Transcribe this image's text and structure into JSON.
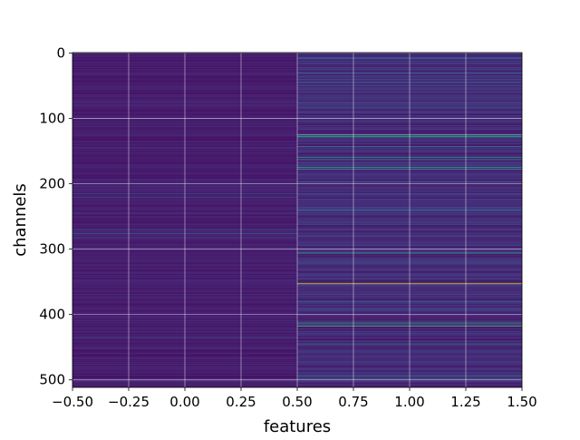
{
  "chart_data": {
    "type": "heatmap",
    "title": "",
    "xlabel": "features",
    "ylabel": "channels",
    "xlim": [
      -0.5,
      1.5
    ],
    "ylim": [
      511.5,
      -0.5
    ],
    "y_inverted": true,
    "x_ticks": [
      -0.5,
      -0.25,
      0.0,
      0.25,
      0.5,
      0.75,
      1.0,
      1.25,
      1.5
    ],
    "x_tick_labels": [
      "−0.50",
      "−0.25",
      "0.00",
      "0.25",
      "0.50",
      "0.75",
      "1.00",
      "1.25",
      "1.50"
    ],
    "y_ticks": [
      0,
      100,
      200,
      300,
      400,
      500
    ],
    "y_tick_labels": [
      "0",
      "100",
      "200",
      "300",
      "400",
      "500"
    ],
    "grid": true,
    "colormap": "viridis",
    "n_features": 2,
    "n_channels": 512,
    "base_color": "#3b1f6e",
    "column_0_highlight_rows": [
      {
        "row": 215,
        "value": 0.28
      },
      {
        "row": 221,
        "value": 0.22
      },
      {
        "row": 270,
        "value": 0.25
      },
      {
        "row": 276,
        "value": 0.3
      },
      {
        "row": 283,
        "value": 0.22
      },
      {
        "row": 436,
        "value": 0.2
      }
    ],
    "column_1_highlight_rows": [
      {
        "row": 8,
        "value": 0.45
      },
      {
        "row": 30,
        "value": 0.38
      },
      {
        "row": 45,
        "value": 0.4
      },
      {
        "row": 60,
        "value": 0.35
      },
      {
        "row": 125,
        "value": 0.72
      },
      {
        "row": 128,
        "value": 0.6
      },
      {
        "row": 143,
        "value": 0.45
      },
      {
        "row": 160,
        "value": 0.55
      },
      {
        "row": 163,
        "value": 0.5
      },
      {
        "row": 175,
        "value": 0.6
      },
      {
        "row": 178,
        "value": 0.58
      },
      {
        "row": 197,
        "value": 0.4
      },
      {
        "row": 240,
        "value": 0.35
      },
      {
        "row": 262,
        "value": 0.3
      },
      {
        "row": 306,
        "value": 0.58
      },
      {
        "row": 353,
        "value": 0.98
      },
      {
        "row": 380,
        "value": 0.35
      },
      {
        "row": 413,
        "value": 0.65
      },
      {
        "row": 418,
        "value": 0.7
      },
      {
        "row": 445,
        "value": 0.5
      },
      {
        "row": 494,
        "value": 0.45
      }
    ]
  }
}
